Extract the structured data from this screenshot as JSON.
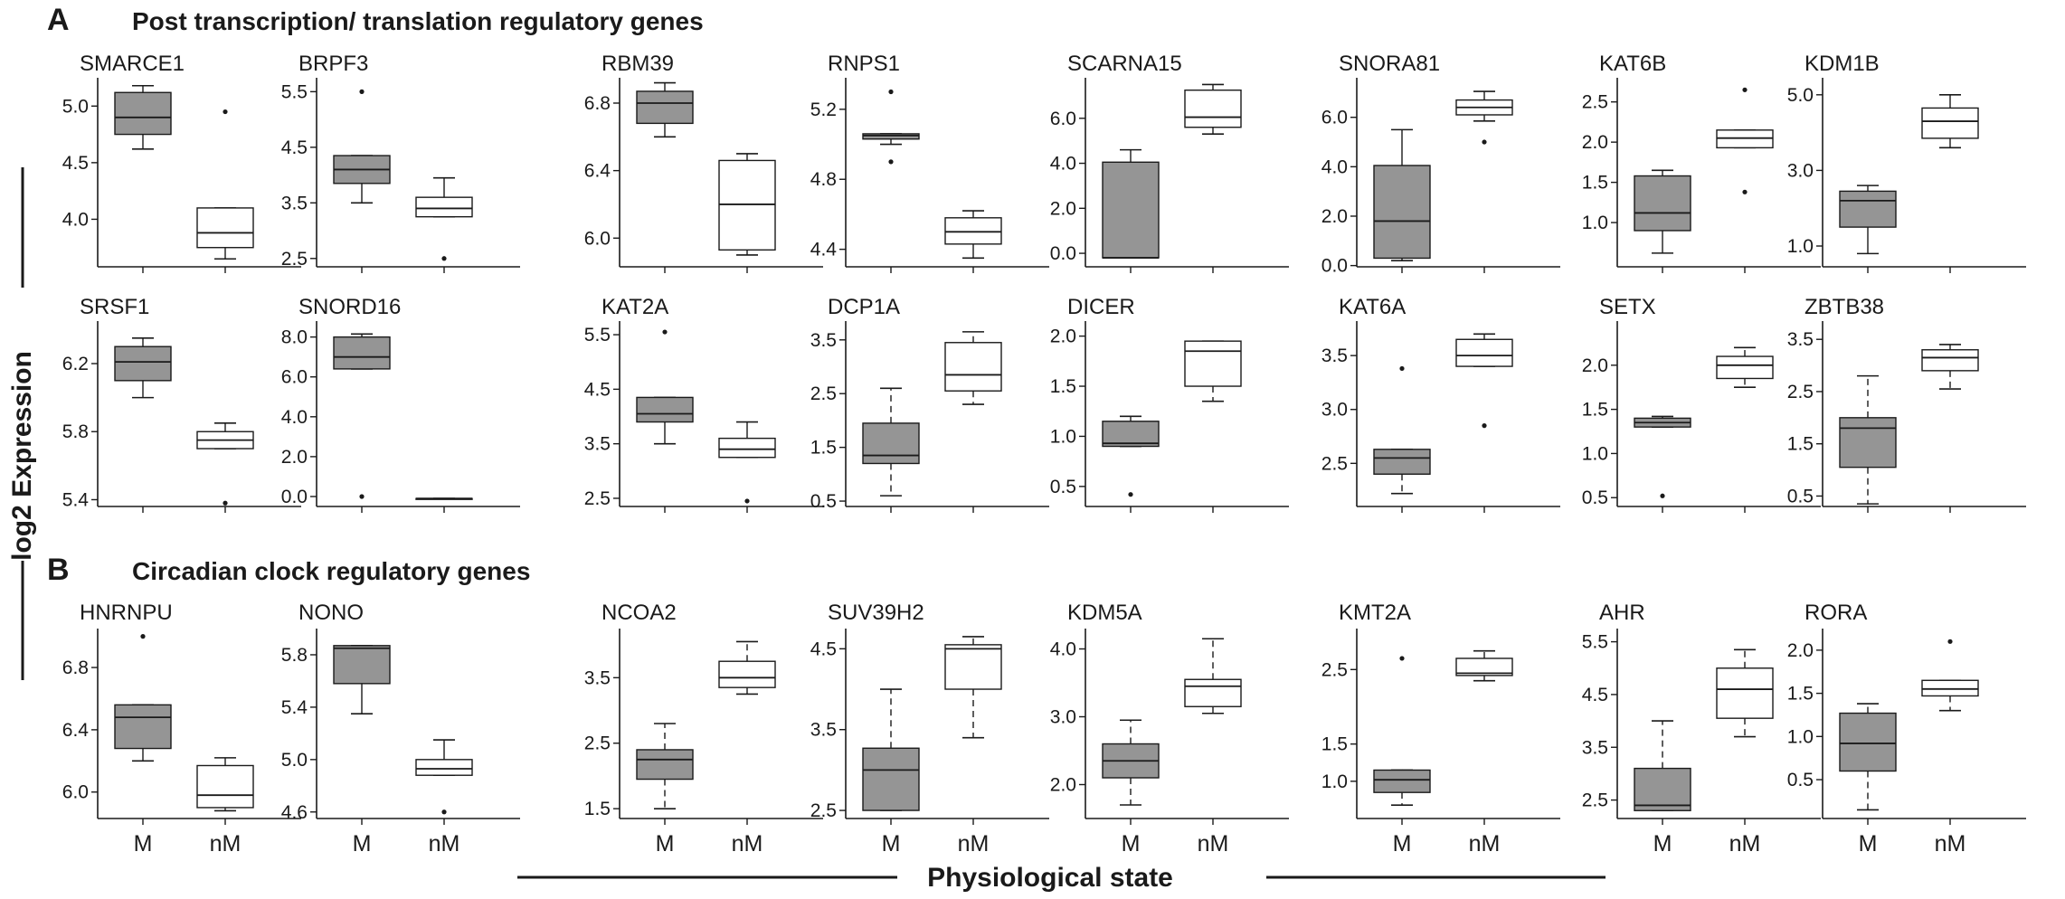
{
  "figure": {
    "panel_a_letter": "A",
    "panel_a_title": "Post transcription/ translation regulatory genes",
    "panel_b_letter": "B",
    "panel_b_title": "Circadian clock regulatory genes",
    "y_axis_label": "log2 Expression",
    "x_axis_label": "Physiological state"
  },
  "colors": {
    "M_fill": "#959595",
    "nM_fill": "#ffffff",
    "stroke": "#1a1a1a"
  },
  "chart_data": [
    {
      "type": "box",
      "gene": "SMARCE1",
      "categories": [
        "M",
        "nM"
      ],
      "show_xtick_labels": false,
      "yticks": [
        4.0,
        4.5,
        5.0
      ],
      "ytick_labels": [
        "4.0",
        "4.5",
        "5.0"
      ],
      "ylim": [
        3.58,
        5.25
      ],
      "boxes": [
        {
          "group": "M",
          "whisker_low": 4.62,
          "q1": 4.75,
          "median": 4.9,
          "q3": 5.12,
          "whisker_high": 5.18,
          "outliers": []
        },
        {
          "group": "nM",
          "whisker_low": 3.65,
          "q1": 3.75,
          "median": 3.88,
          "q3": 4.1,
          "whisker_high": 4.1,
          "outliers": [
            4.95
          ]
        }
      ]
    },
    {
      "type": "box",
      "gene": "BRPF3",
      "categories": [
        "M",
        "nM"
      ],
      "show_xtick_labels": false,
      "yticks": [
        2.5,
        3.5,
        4.5,
        5.5
      ],
      "ytick_labels": [
        "2.5",
        "3.5",
        "4.5",
        "5.5"
      ],
      "ylim": [
        2.35,
        5.75
      ],
      "boxes": [
        {
          "group": "M",
          "whisker_low": 3.5,
          "q1": 3.85,
          "median": 4.1,
          "q3": 4.35,
          "whisker_high": 4.35,
          "outliers": [
            5.5
          ]
        },
        {
          "group": "nM",
          "whisker_low": 3.25,
          "q1": 3.25,
          "median": 3.4,
          "q3": 3.6,
          "whisker_high": 3.95,
          "outliers": [
            2.5
          ]
        }
      ]
    },
    {
      "type": "box",
      "gene": "RBM39",
      "categories": [
        "M",
        "nM"
      ],
      "show_xtick_labels": false,
      "yticks": [
        6.0,
        6.4,
        6.8
      ],
      "ytick_labels": [
        "6.0",
        "6.4",
        "6.8"
      ],
      "ylim": [
        5.83,
        6.95
      ],
      "boxes": [
        {
          "group": "M",
          "whisker_low": 6.6,
          "q1": 6.68,
          "median": 6.8,
          "q3": 6.87,
          "whisker_high": 6.92,
          "outliers": []
        },
        {
          "group": "nM",
          "whisker_low": 5.9,
          "q1": 5.93,
          "median": 6.2,
          "q3": 6.46,
          "whisker_high": 6.5,
          "outliers": []
        }
      ]
    },
    {
      "type": "box",
      "gene": "RNPS1",
      "categories": [
        "M",
        "nM"
      ],
      "show_xtick_labels": false,
      "yticks": [
        4.4,
        4.8,
        5.2
      ],
      "ytick_labels": [
        "4.4",
        "4.8",
        "5.2"
      ],
      "ylim": [
        4.3,
        5.38
      ],
      "boxes": [
        {
          "group": "M",
          "whisker_low": 5.0,
          "q1": 5.03,
          "median": 5.05,
          "q3": 5.06,
          "whisker_high": 5.06,
          "outliers": [
            5.3,
            4.9
          ]
        },
        {
          "group": "nM",
          "whisker_low": 4.35,
          "q1": 4.43,
          "median": 4.5,
          "q3": 4.58,
          "whisker_high": 4.62,
          "outliers": []
        }
      ]
    },
    {
      "type": "box",
      "gene": "SCARNA15",
      "categories": [
        "M",
        "nM"
      ],
      "show_xtick_labels": false,
      "yticks": [
        0.0,
        2.0,
        4.0,
        6.0
      ],
      "ytick_labels": [
        "0.0",
        "2.0",
        "4.0",
        "6.0"
      ],
      "ylim": [
        -0.6,
        7.8
      ],
      "boxes": [
        {
          "group": "M",
          "whisker_low": -0.2,
          "q1": -0.2,
          "median": -0.2,
          "q3": 4.05,
          "whisker_high": 4.6,
          "outliers": []
        },
        {
          "group": "nM",
          "whisker_low": 5.3,
          "q1": 5.6,
          "median": 6.05,
          "q3": 7.25,
          "whisker_high": 7.5,
          "outliers": []
        }
      ]
    },
    {
      "type": "box",
      "gene": "SNORA81",
      "categories": [
        "M",
        "nM"
      ],
      "show_xtick_labels": false,
      "yticks": [
        0.0,
        2.0,
        4.0,
        6.0
      ],
      "ytick_labels": [
        "0.0",
        "2.0",
        "4.0",
        "6.0"
      ],
      "ylim": [
        -0.05,
        7.6
      ],
      "boxes": [
        {
          "group": "M",
          "whisker_low": 0.2,
          "q1": 0.3,
          "median": 1.8,
          "q3": 4.05,
          "whisker_high": 5.5,
          "outliers": []
        },
        {
          "group": "nM",
          "whisker_low": 5.85,
          "q1": 6.1,
          "median": 6.4,
          "q3": 6.7,
          "whisker_high": 7.05,
          "outliers": [
            5.0
          ]
        }
      ]
    },
    {
      "type": "box",
      "gene": "KAT6B",
      "categories": [
        "M",
        "nM"
      ],
      "show_xtick_labels": false,
      "yticks": [
        1.0,
        1.5,
        2.0,
        2.5
      ],
      "ytick_labels": [
        "1.0",
        "1.5",
        "2.0",
        "2.5"
      ],
      "ylim": [
        0.45,
        2.8
      ],
      "boxes": [
        {
          "group": "M",
          "whisker_low": 0.62,
          "q1": 0.9,
          "median": 1.12,
          "q3": 1.58,
          "whisker_high": 1.65,
          "outliers": []
        },
        {
          "group": "nM",
          "whisker_low": 1.93,
          "q1": 1.93,
          "median": 2.05,
          "q3": 2.15,
          "whisker_high": 2.15,
          "outliers": [
            2.65,
            1.38
          ]
        }
      ]
    },
    {
      "type": "box",
      "gene": "KDM1B",
      "categories": [
        "M",
        "nM"
      ],
      "show_xtick_labels": false,
      "yticks": [
        1.0,
        3.0,
        5.0
      ],
      "ytick_labels": [
        "1.0",
        "3.0",
        "5.0"
      ],
      "ylim": [
        0.45,
        5.45
      ],
      "boxes": [
        {
          "group": "M",
          "whisker_low": 0.8,
          "q1": 1.5,
          "median": 2.2,
          "q3": 2.45,
          "whisker_high": 2.6,
          "outliers": []
        },
        {
          "group": "nM",
          "whisker_low": 3.6,
          "q1": 3.85,
          "median": 4.3,
          "q3": 4.65,
          "whisker_high": 5.0,
          "outliers": []
        }
      ]
    },
    {
      "type": "box",
      "gene": "SRSF1",
      "categories": [
        "M",
        "nM"
      ],
      "show_xtick_labels": false,
      "yticks": [
        5.4,
        5.8,
        6.2
      ],
      "ytick_labels": [
        "5.4",
        "5.8",
        "6.2"
      ],
      "ylim": [
        5.36,
        6.45
      ],
      "boxes": [
        {
          "group": "M",
          "whisker_low": 6.0,
          "q1": 6.1,
          "median": 6.21,
          "q3": 6.3,
          "whisker_high": 6.35,
          "outliers": []
        },
        {
          "group": "nM",
          "whisker_low": 5.7,
          "q1": 5.7,
          "median": 5.75,
          "q3": 5.8,
          "whisker_high": 5.85,
          "outliers": [
            5.38
          ]
        }
      ]
    },
    {
      "type": "box",
      "gene": "SNORD16",
      "categories": [
        "M",
        "nM"
      ],
      "show_xtick_labels": false,
      "yticks": [
        0.0,
        2.0,
        4.0,
        6.0,
        8.0
      ],
      "ytick_labels": [
        "0.0",
        "2.0",
        "4.0",
        "6.0",
        "8.0"
      ],
      "ylim": [
        -0.5,
        8.8
      ],
      "boxes": [
        {
          "group": "M",
          "whisker_low": 6.4,
          "q1": 6.4,
          "median": 7.0,
          "q3": 8.0,
          "whisker_high": 8.15,
          "outliers": [
            0.0
          ]
        },
        {
          "group": "nM",
          "whisker_low": -0.1,
          "q1": -0.1,
          "median": -0.1,
          "q3": -0.1,
          "whisker_high": -0.1,
          "outliers": []
        }
      ]
    },
    {
      "type": "box",
      "gene": "KAT2A",
      "categories": [
        "M",
        "nM"
      ],
      "show_xtick_labels": false,
      "yticks": [
        2.5,
        3.5,
        4.5,
        5.5
      ],
      "ytick_labels": [
        "2.5",
        "3.5",
        "4.5",
        "5.5"
      ],
      "ylim": [
        2.35,
        5.75
      ],
      "boxes": [
        {
          "group": "M",
          "whisker_low": 3.5,
          "q1": 3.9,
          "median": 4.05,
          "q3": 4.35,
          "whisker_high": 4.35,
          "outliers": [
            5.55
          ]
        },
        {
          "group": "nM",
          "whisker_low": 3.25,
          "q1": 3.25,
          "median": 3.4,
          "q3": 3.6,
          "whisker_high": 3.9,
          "outliers": [
            2.45
          ]
        }
      ]
    },
    {
      "type": "box",
      "gene": "DCP1A",
      "categories": [
        "M",
        "nM"
      ],
      "show_xtick_labels": false,
      "yticks": [
        0.5,
        1.5,
        2.5,
        3.5
      ],
      "ytick_labels": [
        "0.5",
        "1.5",
        "2.5",
        "3.5"
      ],
      "ylim": [
        0.4,
        3.85
      ],
      "boxes": [
        {
          "group": "M",
          "whisker_low": 0.6,
          "q1": 1.2,
          "median": 1.35,
          "q3": 1.95,
          "whisker_high": 2.6,
          "outliers": []
        },
        {
          "group": "nM",
          "whisker_low": 2.3,
          "q1": 2.55,
          "median": 2.85,
          "q3": 3.45,
          "whisker_high": 3.65,
          "outliers": []
        }
      ]
    },
    {
      "type": "box",
      "gene": "DICER",
      "categories": [
        "M",
        "nM"
      ],
      "show_xtick_labels": false,
      "yticks": [
        0.5,
        1.0,
        1.5,
        2.0
      ],
      "ytick_labels": [
        "0.5",
        "1.0",
        "1.5",
        "2.0"
      ],
      "ylim": [
        0.3,
        2.15
      ],
      "boxes": [
        {
          "group": "M",
          "whisker_low": 0.9,
          "q1": 0.9,
          "median": 0.93,
          "q3": 1.15,
          "whisker_high": 1.2,
          "outliers": [
            0.42
          ]
        },
        {
          "group": "nM",
          "whisker_low": 1.35,
          "q1": 1.5,
          "median": 1.85,
          "q3": 1.95,
          "whisker_high": 1.95,
          "outliers": []
        }
      ]
    },
    {
      "type": "box",
      "gene": "KAT6A",
      "categories": [
        "M",
        "nM"
      ],
      "show_xtick_labels": false,
      "yticks": [
        2.5,
        3.0,
        3.5
      ],
      "ytick_labels": [
        "2.5",
        "3.0",
        "3.5"
      ],
      "ylim": [
        2.1,
        3.82
      ],
      "boxes": [
        {
          "group": "M",
          "whisker_low": 2.22,
          "q1": 2.4,
          "median": 2.55,
          "q3": 2.63,
          "whisker_high": 2.63,
          "outliers": [
            3.38
          ]
        },
        {
          "group": "nM",
          "whisker_low": 3.4,
          "q1": 3.4,
          "median": 3.5,
          "q3": 3.65,
          "whisker_high": 3.7,
          "outliers": [
            2.85
          ]
        }
      ]
    },
    {
      "type": "box",
      "gene": "SETX",
      "categories": [
        "M",
        "nM"
      ],
      "show_xtick_labels": false,
      "yticks": [
        0.5,
        1.0,
        1.5,
        2.0
      ],
      "ytick_labels": [
        "0.5",
        "1.0",
        "1.5",
        "2.0"
      ],
      "ylim": [
        0.4,
        2.5
      ],
      "boxes": [
        {
          "group": "M",
          "whisker_low": 1.3,
          "q1": 1.3,
          "median": 1.35,
          "q3": 1.4,
          "whisker_high": 1.42,
          "outliers": [
            0.52
          ]
        },
        {
          "group": "nM",
          "whisker_low": 1.75,
          "q1": 1.85,
          "median": 2.0,
          "q3": 2.1,
          "whisker_high": 2.2,
          "outliers": []
        }
      ]
    },
    {
      "type": "box",
      "gene": "ZBTB38",
      "categories": [
        "M",
        "nM"
      ],
      "show_xtick_labels": false,
      "yticks": [
        0.5,
        1.5,
        2.5,
        3.5
      ],
      "ytick_labels": [
        "0.5",
        "1.5",
        "2.5",
        "3.5"
      ],
      "ylim": [
        0.3,
        3.85
      ],
      "boxes": [
        {
          "group": "M",
          "whisker_low": 0.35,
          "q1": 1.05,
          "median": 1.8,
          "q3": 2.0,
          "whisker_high": 2.8,
          "outliers": []
        },
        {
          "group": "nM",
          "whisker_low": 2.55,
          "q1": 2.9,
          "median": 3.15,
          "q3": 3.3,
          "whisker_high": 3.4,
          "outliers": []
        }
      ]
    },
    {
      "type": "box",
      "gene": "HNRNPU",
      "categories": [
        "M",
        "nM"
      ],
      "show_xtick_labels": true,
      "yticks": [
        6.0,
        6.4,
        6.8
      ],
      "ytick_labels": [
        "6.0",
        "6.4",
        "6.8"
      ],
      "ylim": [
        5.83,
        7.05
      ],
      "boxes": [
        {
          "group": "M",
          "whisker_low": 6.2,
          "q1": 6.28,
          "median": 6.48,
          "q3": 6.56,
          "whisker_high": 6.56,
          "outliers": [
            7.0
          ]
        },
        {
          "group": "nM",
          "whisker_low": 5.88,
          "q1": 5.9,
          "median": 5.98,
          "q3": 6.17,
          "whisker_high": 6.22,
          "outliers": []
        }
      ]
    },
    {
      "type": "box",
      "gene": "NONO",
      "categories": [
        "M",
        "nM"
      ],
      "show_xtick_labels": true,
      "yticks": [
        4.6,
        5.0,
        5.4,
        5.8
      ],
      "ytick_labels": [
        "4.6",
        "5.0",
        "5.4",
        "5.8"
      ],
      "ylim": [
        4.55,
        6.0
      ],
      "boxes": [
        {
          "group": "M",
          "whisker_low": 5.35,
          "q1": 5.58,
          "median": 5.85,
          "q3": 5.87,
          "whisker_high": 5.87,
          "outliers": []
        },
        {
          "group": "nM",
          "whisker_low": 4.88,
          "q1": 4.88,
          "median": 4.93,
          "q3": 5.0,
          "whisker_high": 5.15,
          "outliers": [
            4.6
          ]
        }
      ]
    },
    {
      "type": "box",
      "gene": "NCOA2",
      "categories": [
        "M",
        "nM"
      ],
      "show_xtick_labels": true,
      "yticks": [
        1.5,
        2.5,
        3.5
      ],
      "ytick_labels": [
        "1.5",
        "2.5",
        "3.5"
      ],
      "ylim": [
        1.35,
        4.25
      ],
      "boxes": [
        {
          "group": "M",
          "whisker_low": 1.5,
          "q1": 1.95,
          "median": 2.25,
          "q3": 2.4,
          "whisker_high": 2.8,
          "outliers": []
        },
        {
          "group": "nM",
          "whisker_low": 3.25,
          "q1": 3.35,
          "median": 3.5,
          "q3": 3.75,
          "whisker_high": 4.05,
          "outliers": []
        }
      ]
    },
    {
      "type": "box",
      "gene": "SUV39H2",
      "categories": [
        "M",
        "nM"
      ],
      "show_xtick_labels": true,
      "yticks": [
        2.5,
        3.5,
        4.5
      ],
      "ytick_labels": [
        "2.5",
        "3.5",
        "4.5"
      ],
      "ylim": [
        2.4,
        4.75
      ],
      "boxes": [
        {
          "group": "M",
          "whisker_low": 2.5,
          "q1": 2.5,
          "median": 3.0,
          "q3": 3.27,
          "whisker_high": 4.0,
          "outliers": []
        },
        {
          "group": "nM",
          "whisker_low": 3.4,
          "q1": 4.0,
          "median": 4.5,
          "q3": 4.55,
          "whisker_high": 4.65,
          "outliers": []
        }
      ]
    },
    {
      "type": "box",
      "gene": "KDM5A",
      "categories": [
        "M",
        "nM"
      ],
      "show_xtick_labels": true,
      "yticks": [
        2.0,
        3.0,
        4.0
      ],
      "ytick_labels": [
        "2.0",
        "3.0",
        "4.0"
      ],
      "ylim": [
        1.5,
        4.3
      ],
      "boxes": [
        {
          "group": "M",
          "whisker_low": 1.7,
          "q1": 2.1,
          "median": 2.35,
          "q3": 2.6,
          "whisker_high": 2.95,
          "outliers": []
        },
        {
          "group": "nM",
          "whisker_low": 3.05,
          "q1": 3.15,
          "median": 3.45,
          "q3": 3.55,
          "whisker_high": 4.15,
          "outliers": []
        }
      ]
    },
    {
      "type": "box",
      "gene": "KMT2A",
      "categories": [
        "M",
        "nM"
      ],
      "show_xtick_labels": true,
      "yticks": [
        1.0,
        1.5,
        2.5
      ],
      "ytick_labels": [
        "1.0",
        "1.5",
        "2.5"
      ],
      "ylim": [
        0.5,
        3.05
      ],
      "boxes": [
        {
          "group": "M",
          "whisker_low": 0.68,
          "q1": 0.85,
          "median": 1.02,
          "q3": 1.15,
          "whisker_high": 1.15,
          "outliers": [
            2.65
          ]
        },
        {
          "group": "nM",
          "whisker_low": 2.35,
          "q1": 2.42,
          "median": 2.45,
          "q3": 2.65,
          "whisker_high": 2.75,
          "outliers": []
        }
      ]
    },
    {
      "type": "box",
      "gene": "AHR",
      "categories": [
        "M",
        "nM"
      ],
      "show_xtick_labels": true,
      "yticks": [
        2.5,
        3.5,
        4.5,
        5.5
      ],
      "ytick_labels": [
        "2.5",
        "3.5",
        "4.5",
        "5.5"
      ],
      "ylim": [
        2.15,
        5.75
      ],
      "boxes": [
        {
          "group": "M",
          "whisker_low": 2.3,
          "q1": 2.3,
          "median": 2.4,
          "q3": 3.1,
          "whisker_high": 4.0,
          "outliers": []
        },
        {
          "group": "nM",
          "whisker_low": 3.7,
          "q1": 4.05,
          "median": 4.6,
          "q3": 5.0,
          "whisker_high": 5.35,
          "outliers": []
        }
      ]
    },
    {
      "type": "box",
      "gene": "RORA",
      "categories": [
        "M",
        "nM"
      ],
      "show_xtick_labels": true,
      "yticks": [
        0.5,
        1.0,
        1.5,
        2.0
      ],
      "ytick_labels": [
        "0.5",
        "1.0",
        "1.5",
        "2.0"
      ],
      "ylim": [
        0.05,
        2.25
      ],
      "boxes": [
        {
          "group": "M",
          "whisker_low": 0.15,
          "q1": 0.6,
          "median": 0.92,
          "q3": 1.27,
          "whisker_high": 1.38,
          "outliers": []
        },
        {
          "group": "nM",
          "whisker_low": 1.3,
          "q1": 1.47,
          "median": 1.55,
          "q3": 1.65,
          "whisker_high": 1.65,
          "outliers": [
            2.1
          ]
        }
      ]
    }
  ]
}
